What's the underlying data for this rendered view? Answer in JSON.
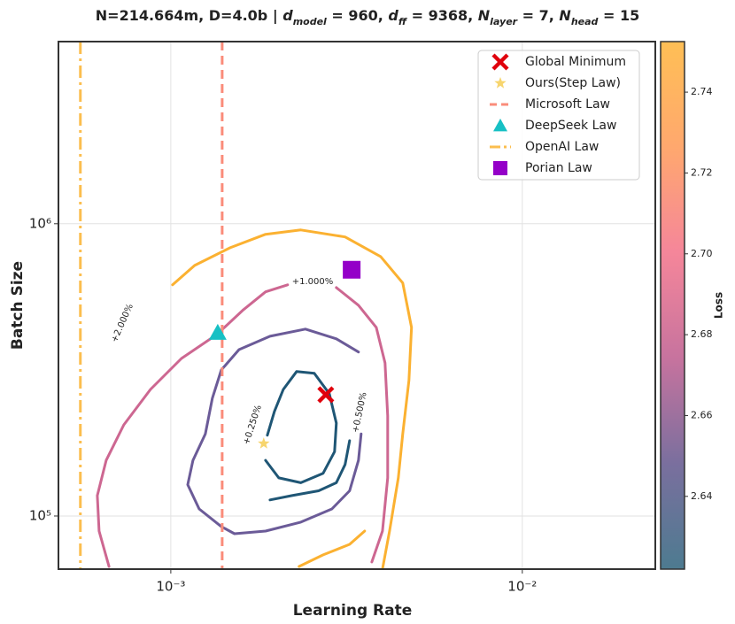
{
  "chart_data": {
    "type": "contour",
    "title_parts": [
      {
        "text": "N=214.664m, D=4.0b | "
      },
      {
        "text": "d",
        "style": "italic"
      },
      {
        "text": "model",
        "style": "sub"
      },
      {
        "text": " = 960, "
      },
      {
        "text": "d",
        "style": "italic"
      },
      {
        "text": "ff",
        "style": "sub"
      },
      {
        "text": " = 9368, "
      },
      {
        "text": "N",
        "style": "italic"
      },
      {
        "text": "layer",
        "style": "sub"
      },
      {
        "text": " = 7, "
      },
      {
        "text": "N",
        "style": "italic"
      },
      {
        "text": "head",
        "style": "sub"
      },
      {
        "text": " = 15"
      }
    ],
    "x_label": "Learning Rate",
    "y_label": "Batch Size",
    "xscale": "log",
    "yscale": "log",
    "xlim": [
      0.000479,
      0.0239
    ],
    "ylim": [
      65800,
      4200000
    ],
    "xticks": [
      {
        "value": 0.001,
        "label": "10⁻³"
      },
      {
        "value": 0.01,
        "label": "10⁻²"
      }
    ],
    "yticks": [
      {
        "value": 100000,
        "label": "10⁵"
      },
      {
        "value": 1000000,
        "label": "10⁶"
      }
    ],
    "grid": true,
    "legend": "upper right",
    "contours": [
      {
        "color": "#fbb131",
        "x": [
          0.001012,
          0.001169,
          0.001475,
          0.00186,
          0.002344,
          0.003133,
          0.003954,
          0.00457,
          0.00484,
          0.00476,
          0.00457,
          0.00444,
          0.00419,
          0.004,
          null,
          0.002317,
          0.002712,
          0.003226,
          0.003561
        ],
        "y": [
          618000,
          720000,
          828000,
          920000,
          952000,
          901000,
          772000,
          627000,
          442000,
          291000,
          191000,
          135000,
          88800,
          65800,
          null,
          67200,
          73600,
          80000,
          88800
        ]
      },
      {
        "color": "#cd6791",
        "x": [
          0.000667,
          0.000625,
          0.000618,
          0.000655,
          0.000735,
          0.000875,
          0.001072,
          0.001352,
          0.001609,
          0.00186,
          0.00215,
          null,
          0.002958,
          0.00342,
          0.003841,
          0.00407,
          0.00414,
          0.00414,
          0.004,
          0.003731
        ],
        "y": [
          67200,
          88800,
          117500,
          155000,
          205000,
          271000,
          346000,
          418000,
          508000,
          585000,
          618000,
          null,
          605000,
          526000,
          442000,
          334000,
          220000,
          135000,
          88800,
          69600
        ]
      },
      {
        "color": "#6b5b98",
        "x": [
          0.00342,
          0.002958,
          0.002415,
          0.001915,
          0.001563,
          0.001392,
          0.001313,
          0.001254,
          0.001156,
          0.001117,
          0.001204,
          0.001392,
          0.001518,
          0.00186,
          0.002344,
          0.002873,
          0.003226,
          0.00342,
          0.00348
        ],
        "y": [
          364000,
          404000,
          436000,
          412000,
          371000,
          316000,
          253000,
          191000,
          155000,
          128000,
          105700,
          92000,
          87000,
          88800,
          95300,
          105700,
          122000,
          155000,
          191000
        ]
      },
      {
        "color": "#1f5675",
        "x": [
          0.00186,
          0.002028,
          0.002344,
          0.002712,
          0.002924,
          0.002958,
          0.002825,
          0.002559,
          0.002279,
          0.002089,
          0.001971,
          0.001882,
          null,
          0.001915,
          0.002213,
          0.002634,
          0.002958,
          0.003133,
          0.003226
        ],
        "y": [
          155000,
          135000,
          130000,
          140000,
          166000,
          208000,
          262000,
          308000,
          312000,
          271000,
          228000,
          189000,
          null,
          113500,
          117500,
          122000,
          130000,
          150000,
          181000
        ]
      }
    ],
    "contour_labels": [
      "+0.250%",
      "+0.500%",
      "+1.000%",
      "+2.000%"
    ],
    "series": [
      {
        "name": "Global Minimum",
        "color": "#e0000c",
        "marker": "x",
        "x": [
          0.00276
        ],
        "y": [
          260000
        ]
      },
      {
        "name": "Ours(Step Law)",
        "color": "#f7d56e",
        "marker": "star",
        "x": [
          0.001838
        ],
        "y": [
          177000
        ]
      },
      {
        "name": "Microsoft Law",
        "color": "#fa8c7a",
        "marker": "vline",
        "dash": "dashed",
        "x": [
          0.0014
        ]
      },
      {
        "name": "DeepSeek Law",
        "color": "#17c0c4",
        "marker": "triangle",
        "x": [
          0.00136
        ],
        "y": [
          424000
        ]
      },
      {
        "name": "OpenAI Law",
        "color": "#fbbe4f",
        "marker": "vline",
        "dash": "dashdot",
        "x": [
          0.000553
        ]
      },
      {
        "name": "Porian Law",
        "color": "#9400c8",
        "marker": "square",
        "x": [
          0.00327
        ],
        "y": [
          696000
        ]
      }
    ],
    "colorbar": {
      "label": "Loss",
      "lim": [
        2.622,
        2.7525
      ],
      "ticks": [
        2.64,
        2.66,
        2.68,
        {
          "value": 2.7,
          "label": "2.70"
        },
        2.72,
        2.74
      ],
      "colors": [
        "#4d7b90",
        "#7a6f9e",
        "#c7739e",
        "#f5869a",
        "#ffa86e",
        "#ffbf55"
      ]
    }
  }
}
